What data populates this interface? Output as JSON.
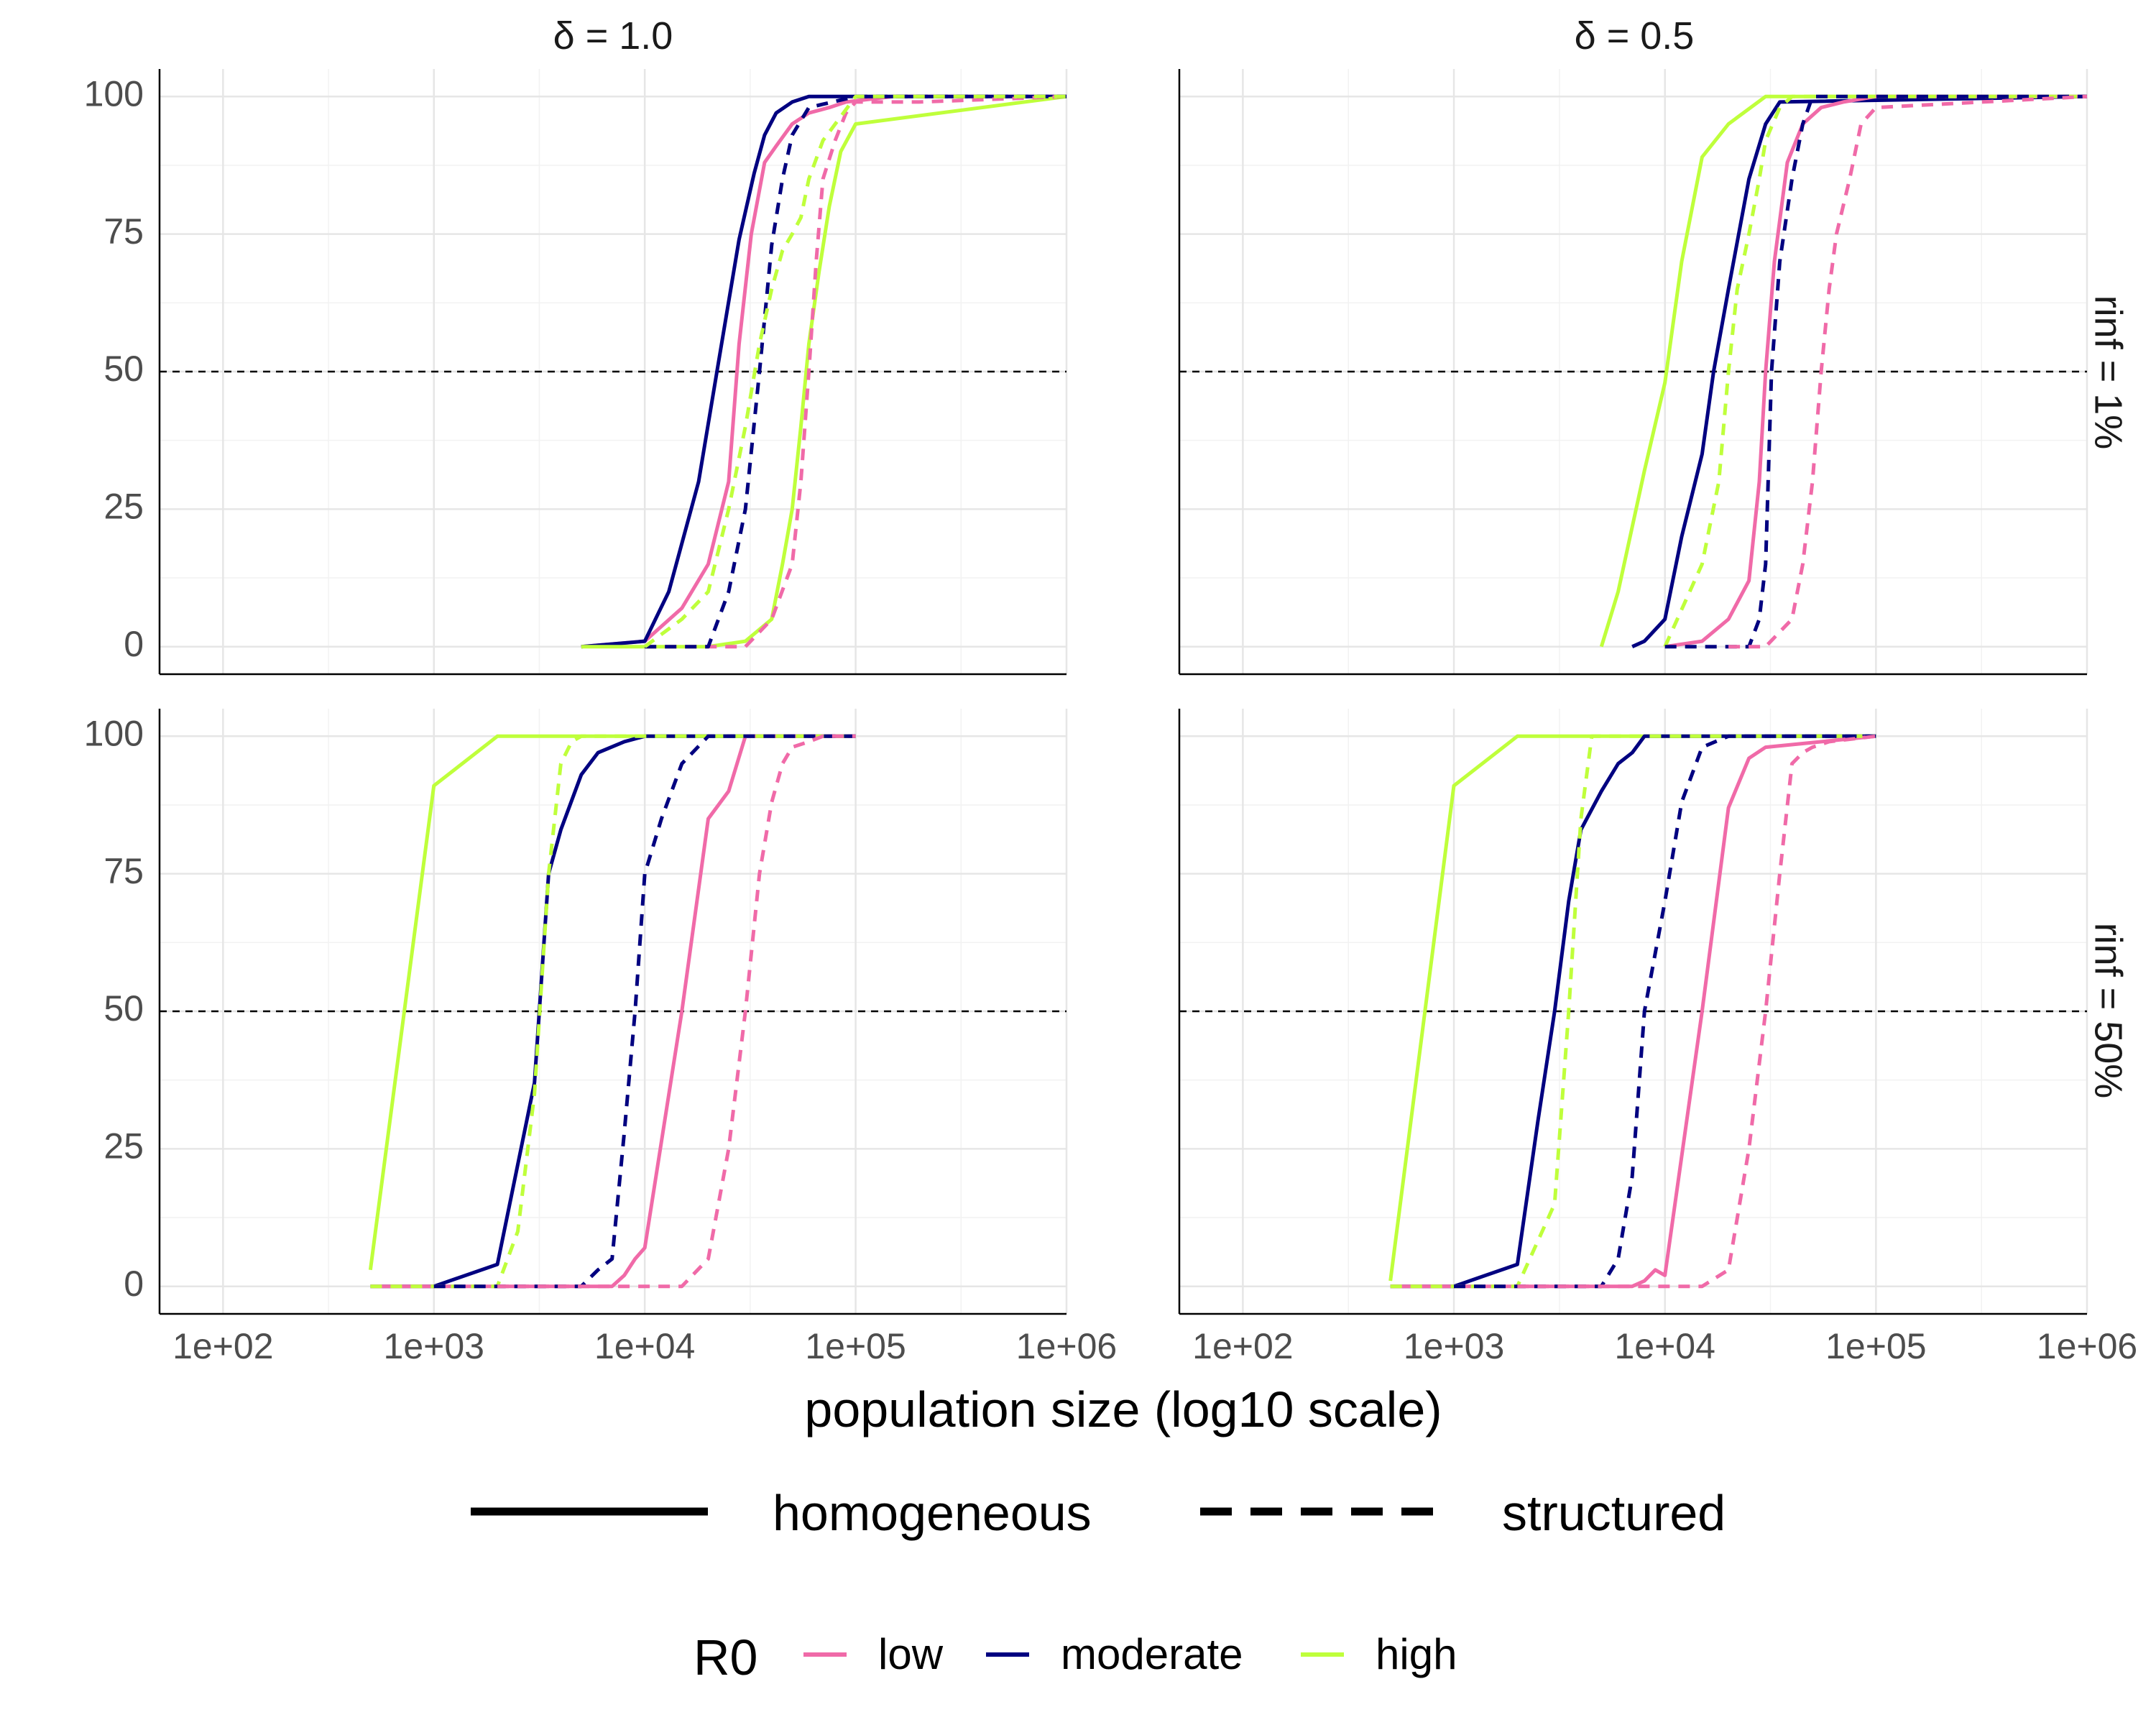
{
  "chart_data": {
    "type": "line",
    "xlabel": "population size (log10 scale)",
    "ylabel": "",
    "x_scale": "log10",
    "xlim": [
      50,
      1000000
    ],
    "ylim": [
      -5,
      105
    ],
    "x_ticks": [
      100,
      1000,
      10000,
      100000,
      1000000
    ],
    "x_tick_labels": [
      "1e+02",
      "1e+03",
      "1e+04",
      "1e+05",
      "1e+06"
    ],
    "y_ticks": [
      0,
      25,
      50,
      75,
      100
    ],
    "y_tick_labels": [
      "0",
      "25",
      "50",
      "75",
      "100"
    ],
    "reference_line": {
      "y": 50,
      "style": "dashed",
      "color": "#000000"
    },
    "grid": true,
    "col_strips": [
      "δ = 1.0",
      "δ = 0.5"
    ],
    "row_strips": [
      "rinf = 1%",
      "rinf = 50%"
    ],
    "legend": {
      "position": "bottom",
      "linetype_entries": [
        "homogeneous",
        "structured"
      ],
      "color_title": "R0",
      "color_entries": [
        {
          "name": "low",
          "color": "#f06aa8"
        },
        {
          "name": "moderate",
          "color": "#000080"
        },
        {
          "name": "high",
          "color": "#bfff3b"
        }
      ]
    },
    "panels": [
      {
        "col": 0,
        "row": 0,
        "series": [
          {
            "R0": "low",
            "structure": "homogeneous",
            "x": [
              5000,
              10000,
              15000,
              20000,
              25000,
              28000,
              32000,
              37000,
              42000,
              50000,
              60000,
              75000,
              90000,
              150000,
              1000000
            ],
            "y": [
              0,
              1,
              7,
              15,
              30,
              55,
              75,
              88,
              91,
              95,
              97,
              98,
              99,
              100,
              100
            ]
          },
          {
            "R0": "moderate",
            "structure": "homogeneous",
            "x": [
              5000,
              10000,
              13000,
              18000,
              22000,
              28000,
              33000,
              37000,
              42000,
              50000,
              60000,
              100000,
              1000000
            ],
            "y": [
              0,
              1,
              10,
              30,
              50,
              74,
              86,
              93,
              97,
              99,
              100,
              100,
              100
            ]
          },
          {
            "R0": "high",
            "structure": "homogeneous",
            "x": [
              5000,
              20000,
              30000,
              40000,
              45000,
              50000,
              55000,
              60000,
              67000,
              75000,
              85000,
              100000,
              1000000
            ],
            "y": [
              0,
              0,
              1,
              5,
              15,
              25,
              40,
              55,
              68,
              80,
              90,
              95,
              100
            ]
          },
          {
            "R0": "low",
            "structure": "structured",
            "x": [
              10000,
              30000,
              40000,
              50000,
              55000,
              60000,
              65000,
              70000,
              80000,
              90000,
              100000,
              200000,
              1000000
            ],
            "y": [
              0,
              0,
              5,
              15,
              30,
              50,
              70,
              85,
              92,
              97,
              99,
              99,
              100
            ]
          },
          {
            "R0": "moderate",
            "structure": "structured",
            "x": [
              10000,
              20000,
              25000,
              30000,
              35000,
              40000,
              45000,
              50000,
              60000,
              100000,
              1000000
            ],
            "y": [
              0,
              0,
              10,
              25,
              50,
              73,
              85,
              93,
              98,
              100,
              100
            ]
          },
          {
            "R0": "high",
            "structure": "structured",
            "x": [
              10000,
              15000,
              20000,
              25000,
              30000,
              35000,
              40000,
              45000,
              50000,
              55000,
              60000,
              70000,
              100000,
              1000000
            ],
            "y": [
              0,
              5,
              10,
              25,
              40,
              55,
              65,
              72,
              75,
              78,
              85,
              92,
              100,
              100
            ]
          }
        ]
      },
      {
        "col": 1,
        "row": 0,
        "series": [
          {
            "R0": "high",
            "structure": "homogeneous",
            "x": [
              5000,
              6000,
              8000,
              10000,
              12000,
              15000,
              20000,
              30000,
              1000000
            ],
            "y": [
              0,
              10,
              32,
              48,
              70,
              89,
              95,
              100,
              100
            ]
          },
          {
            "R0": "moderate",
            "structure": "homogeneous",
            "x": [
              7000,
              8000,
              10000,
              12000,
              15000,
              17000,
              20000,
              25000,
              30000,
              35000,
              1000000
            ],
            "y": [
              0,
              1,
              5,
              20,
              35,
              50,
              65,
              85,
              95,
              99,
              100
            ]
          },
          {
            "R0": "low",
            "structure": "homogeneous",
            "x": [
              10000,
              15000,
              20000,
              25000,
              28000,
              30000,
              33000,
              38000,
              45000,
              55000,
              70000,
              100000,
              1000000
            ],
            "y": [
              0,
              1,
              5,
              12,
              30,
              50,
              70,
              88,
              95,
              98,
              99,
              100,
              100
            ]
          },
          {
            "R0": "high",
            "structure": "structured",
            "x": [
              10000,
              15000,
              18000,
              20000,
              22000,
              25000,
              28000,
              30000,
              35000,
              40000,
              1000000
            ],
            "y": [
              0,
              15,
              30,
              50,
              65,
              75,
              85,
              92,
              98,
              100,
              100
            ]
          },
          {
            "R0": "moderate",
            "structure": "structured",
            "x": [
              10000,
              25000,
              28000,
              30000,
              32000,
              35000,
              40000,
              45000,
              50000,
              1000000
            ],
            "y": [
              0,
              0,
              5,
              15,
              50,
              70,
              85,
              95,
              100,
              100
            ]
          },
          {
            "R0": "low",
            "structure": "structured",
            "x": [
              20000,
              30000,
              40000,
              45000,
              50000,
              55000,
              60000,
              65000,
              75000,
              85000,
              100000,
              1000000
            ],
            "y": [
              0,
              0,
              5,
              15,
              30,
              50,
              65,
              75,
              85,
              95,
              98,
              100
            ]
          }
        ]
      },
      {
        "col": 0,
        "row": 1,
        "series": [
          {
            "R0": "high",
            "structure": "homogeneous",
            "x": [
              500,
              1000,
              2000,
              3000,
              100000
            ],
            "y": [
              3,
              91,
              100,
              100,
              100
            ]
          },
          {
            "R0": "moderate",
            "structure": "homogeneous",
            "x": [
              500,
              1000,
              2000,
              3000,
              3500,
              4000,
              5000,
              6000,
              8000,
              10000,
              100000
            ],
            "y": [
              0,
              0,
              4,
              37,
              75,
              83,
              93,
              97,
              99,
              100,
              100
            ]
          },
          {
            "R0": "low",
            "structure": "homogeneous",
            "x": [
              500,
              7000,
              8000,
              9000,
              10000,
              15000,
              20000,
              25000,
              30000,
              100000
            ],
            "y": [
              0,
              0,
              2,
              5,
              7,
              50,
              85,
              90,
              100,
              100
            ]
          },
          {
            "R0": "high",
            "structure": "structured",
            "x": [
              500,
              1000,
              2000,
              2500,
              3000,
              3500,
              4000,
              4500,
              5000,
              100000
            ],
            "y": [
              0,
              0,
              0,
              10,
              35,
              75,
              95,
              99,
              100,
              100
            ]
          },
          {
            "R0": "moderate",
            "structure": "structured",
            "x": [
              1000,
              5000,
              6000,
              7000,
              8000,
              9000,
              10000,
              12000,
              15000,
              20000,
              100000
            ],
            "y": [
              0,
              0,
              3,
              5,
              28,
              50,
              75,
              85,
              95,
              100,
              100
            ]
          },
          {
            "R0": "low",
            "structure": "structured",
            "x": [
              2000,
              15000,
              20000,
              25000,
              30000,
              35000,
              40000,
              45000,
              50000,
              60000,
              70000,
              100000
            ],
            "y": [
              0,
              0,
              5,
              25,
              50,
              75,
              88,
              95,
              98,
              99,
              100,
              100
            ]
          }
        ]
      },
      {
        "col": 1,
        "row": 1,
        "series": [
          {
            "R0": "high",
            "structure": "homogeneous",
            "x": [
              500,
              1000,
              2000,
              3000,
              100000
            ],
            "y": [
              1,
              91,
              100,
              100,
              100
            ]
          },
          {
            "R0": "moderate",
            "structure": "homogeneous",
            "x": [
              500,
              1000,
              2000,
              2500,
              3000,
              3500,
              4000,
              5000,
              6000,
              7000,
              8000,
              100000
            ],
            "y": [
              0,
              0,
              4,
              30,
              50,
              70,
              83,
              90,
              95,
              97,
              100,
              100
            ]
          },
          {
            "R0": "low",
            "structure": "homogeneous",
            "x": [
              500,
              7000,
              8000,
              9000,
              10000,
              15000,
              20000,
              25000,
              30000,
              100000
            ],
            "y": [
              0,
              0,
              1,
              3,
              2,
              50,
              87,
              96,
              98,
              100
            ]
          },
          {
            "R0": "high",
            "structure": "structured",
            "x": [
              500,
              1000,
              2000,
              3000,
              3500,
              4000,
              4500,
              100000
            ],
            "y": [
              0,
              0,
              0,
              15,
              50,
              85,
              100,
              100
            ]
          },
          {
            "R0": "moderate",
            "structure": "structured",
            "x": [
              1000,
              5000,
              6000,
              7000,
              8000,
              10000,
              12000,
              15000,
              20000,
              100000
            ],
            "y": [
              0,
              0,
              5,
              20,
              50,
              70,
              88,
              98,
              100,
              100
            ]
          },
          {
            "R0": "low",
            "structure": "structured",
            "x": [
              2000,
              15000,
              20000,
              25000,
              30000,
              35000,
              40000,
              45000,
              50000,
              60000,
              100000
            ],
            "y": [
              0,
              0,
              3,
              25,
              50,
              75,
              95,
              97,
              98,
              99,
              100
            ]
          }
        ]
      }
    ]
  }
}
